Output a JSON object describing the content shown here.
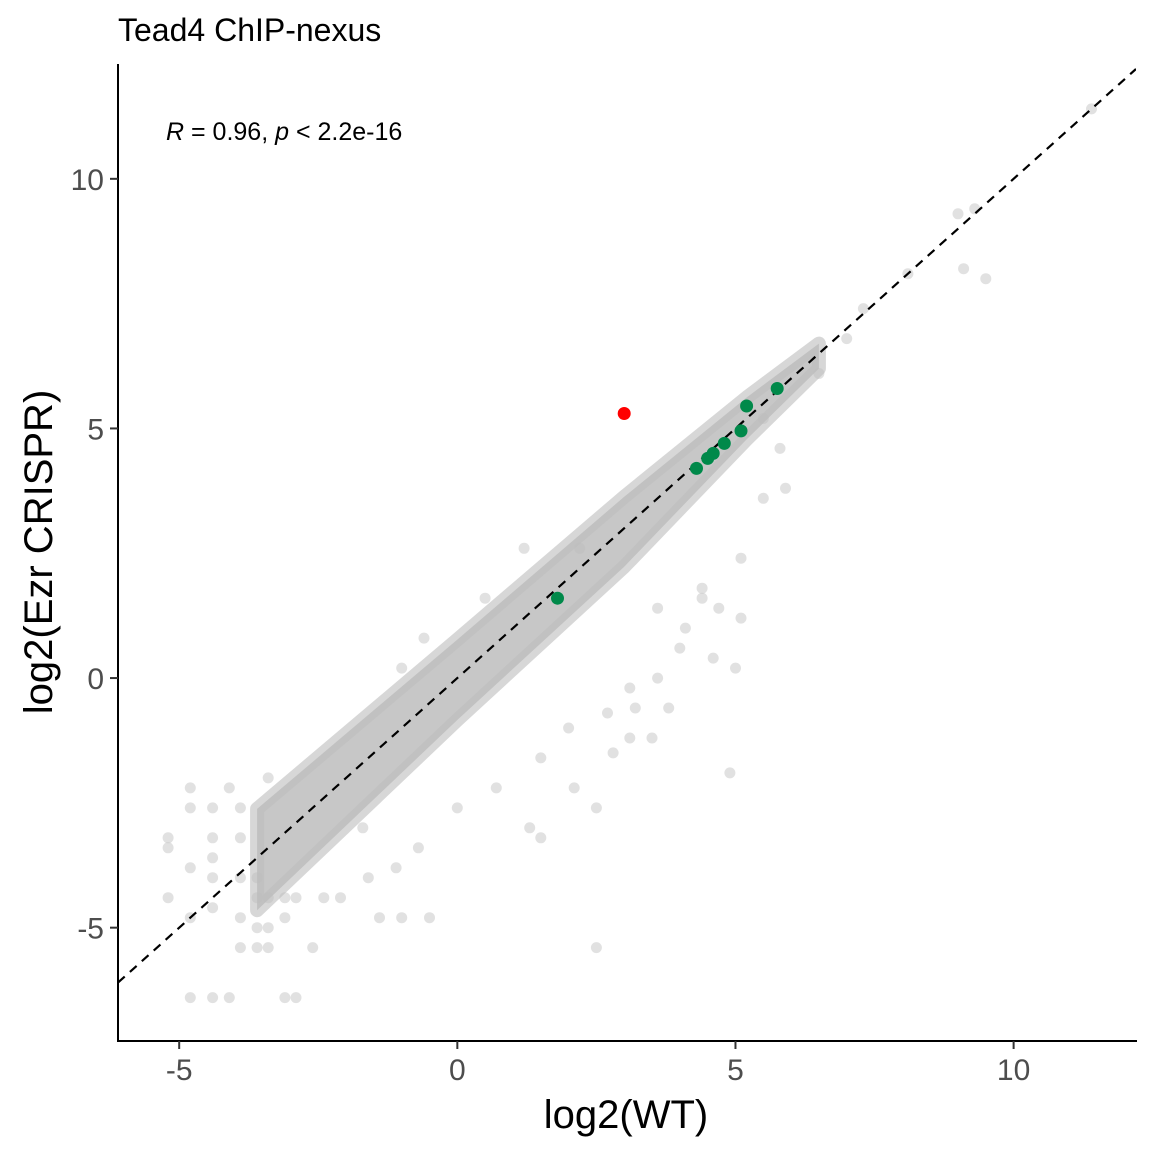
{
  "chart_data": {
    "type": "scatter",
    "title": "Tead4 ChIP-nexus",
    "xlabel": "log2(WT)",
    "ylabel": "log2(Ezr CRISPR)",
    "xlim": [
      -6.1,
      12.2
    ],
    "ylim": [
      -7.25,
      12.3
    ],
    "x_ticks": [
      -5,
      0,
      5,
      10
    ],
    "y_ticks": [
      -5,
      0,
      5,
      10
    ],
    "x_tick_labels": [
      "-5",
      "0",
      "5",
      "10"
    ],
    "y_tick_labels": [
      "-5",
      "0",
      "5",
      "10"
    ],
    "grid": false,
    "legend": "none",
    "annotation": {
      "r_symbol": "R",
      "r_text": " = 0.96, ",
      "p_symbol": "p",
      "p_text": " < 2.2e-16"
    },
    "reference_line": {
      "type": "identity",
      "slope": 1,
      "intercept": 0,
      "style": "dashed",
      "color": "#000000"
    },
    "colors": {
      "background_points": "#bdbdbd",
      "highlight_red": "#ff0000",
      "highlight_green": "#00894a"
    },
    "series": [
      {
        "role": "background",
        "color": "#bdbdbd",
        "points_approx_sample": [
          [
            -5.2,
            -4.4
          ],
          [
            -5.2,
            -3.2
          ],
          [
            -5.2,
            -3.4
          ],
          [
            -4.8,
            -2.2
          ],
          [
            -4.8,
            -2.6
          ],
          [
            -4.8,
            -3.8
          ],
          [
            -4.8,
            -4.8
          ],
          [
            -4.8,
            -6.4
          ],
          [
            -4.4,
            -2.6
          ],
          [
            -4.4,
            -3.2
          ],
          [
            -4.4,
            -3.6
          ],
          [
            -4.4,
            -4.0
          ],
          [
            -4.4,
            -4.6
          ],
          [
            -4.4,
            -6.4
          ],
          [
            -4.1,
            -2.2
          ],
          [
            -4.1,
            -6.4
          ],
          [
            -3.9,
            -2.6
          ],
          [
            -3.9,
            -3.2
          ],
          [
            -3.9,
            -4.0
          ],
          [
            -3.9,
            -4.8
          ],
          [
            -3.9,
            -5.4
          ],
          [
            -3.6,
            -4.0
          ],
          [
            -3.6,
            -4.4
          ],
          [
            -3.6,
            -5.0
          ],
          [
            -3.6,
            -5.4
          ],
          [
            -3.4,
            -4.4
          ],
          [
            -3.4,
            -5.0
          ],
          [
            -3.4,
            -5.4
          ],
          [
            -3.1,
            -4.4
          ],
          [
            -3.1,
            -4.8
          ],
          [
            -3.1,
            -6.4
          ],
          [
            -2.9,
            -4.4
          ],
          [
            -2.9,
            -6.4
          ],
          [
            -2.6,
            -5.4
          ],
          [
            -2.4,
            -4.4
          ],
          [
            -2.1,
            -4.4
          ],
          [
            -1.6,
            -4.0
          ],
          [
            -1.4,
            -4.8
          ],
          [
            -1.0,
            -4.8
          ],
          [
            -1.1,
            -3.8
          ],
          [
            -0.5,
            -4.8
          ],
          [
            -1.7,
            -3.0
          ],
          [
            -0.7,
            -3.4
          ],
          [
            0.0,
            -2.6
          ],
          [
            0.7,
            -2.2
          ],
          [
            1.3,
            -3.0
          ],
          [
            1.5,
            -1.6
          ],
          [
            1.5,
            -3.2
          ],
          [
            2.0,
            -1.0
          ],
          [
            2.1,
            -2.2
          ],
          [
            2.5,
            -5.4
          ],
          [
            2.5,
            -2.6
          ],
          [
            2.7,
            -0.7
          ],
          [
            2.8,
            -1.5
          ],
          [
            3.1,
            -0.2
          ],
          [
            3.1,
            -1.2
          ],
          [
            3.2,
            -0.6
          ],
          [
            3.5,
            -1.2
          ],
          [
            3.6,
            0.0
          ],
          [
            3.8,
            -0.6
          ],
          [
            4.0,
            0.6
          ],
          [
            4.1,
            1.0
          ],
          [
            4.4,
            1.6
          ],
          [
            4.6,
            0.4
          ],
          [
            4.9,
            -1.9
          ],
          [
            4.7,
            1.4
          ],
          [
            5.1,
            1.2
          ],
          [
            5.0,
            0.2
          ],
          [
            5.1,
            2.4
          ],
          [
            5.5,
            3.6
          ],
          [
            5.8,
            4.6
          ],
          [
            5.9,
            3.8
          ],
          [
            6.5,
            6.1
          ],
          [
            7.0,
            6.8
          ],
          [
            7.3,
            7.4
          ],
          [
            8.1,
            8.1
          ],
          [
            9.1,
            8.2
          ],
          [
            9.5,
            8.0
          ],
          [
            9.0,
            9.3
          ],
          [
            9.3,
            9.4
          ],
          [
            11.4,
            11.4
          ],
          [
            3.6,
            1.4
          ],
          [
            4.4,
            1.8
          ],
          [
            5.5,
            5.2
          ],
          [
            2.2,
            2.6
          ],
          [
            -0.6,
            0.8
          ],
          [
            -1.0,
            0.2
          ],
          [
            0.5,
            1.6
          ],
          [
            1.2,
            2.6
          ],
          [
            -3.4,
            -2.0
          ]
        ],
        "trend_band": {
          "center_line": "y = x",
          "approx_half_width": 0.7
        }
      },
      {
        "role": "highlight",
        "color": "#ff0000",
        "points": [
          [
            3.0,
            5.3
          ]
        ]
      },
      {
        "role": "highlight",
        "color": "#00894a",
        "points": [
          [
            1.8,
            1.6
          ],
          [
            4.3,
            4.2
          ],
          [
            4.5,
            4.4
          ],
          [
            4.6,
            4.5
          ],
          [
            4.8,
            4.7
          ],
          [
            5.1,
            4.95
          ],
          [
            5.2,
            5.45
          ],
          [
            5.75,
            5.8
          ]
        ]
      }
    ]
  }
}
